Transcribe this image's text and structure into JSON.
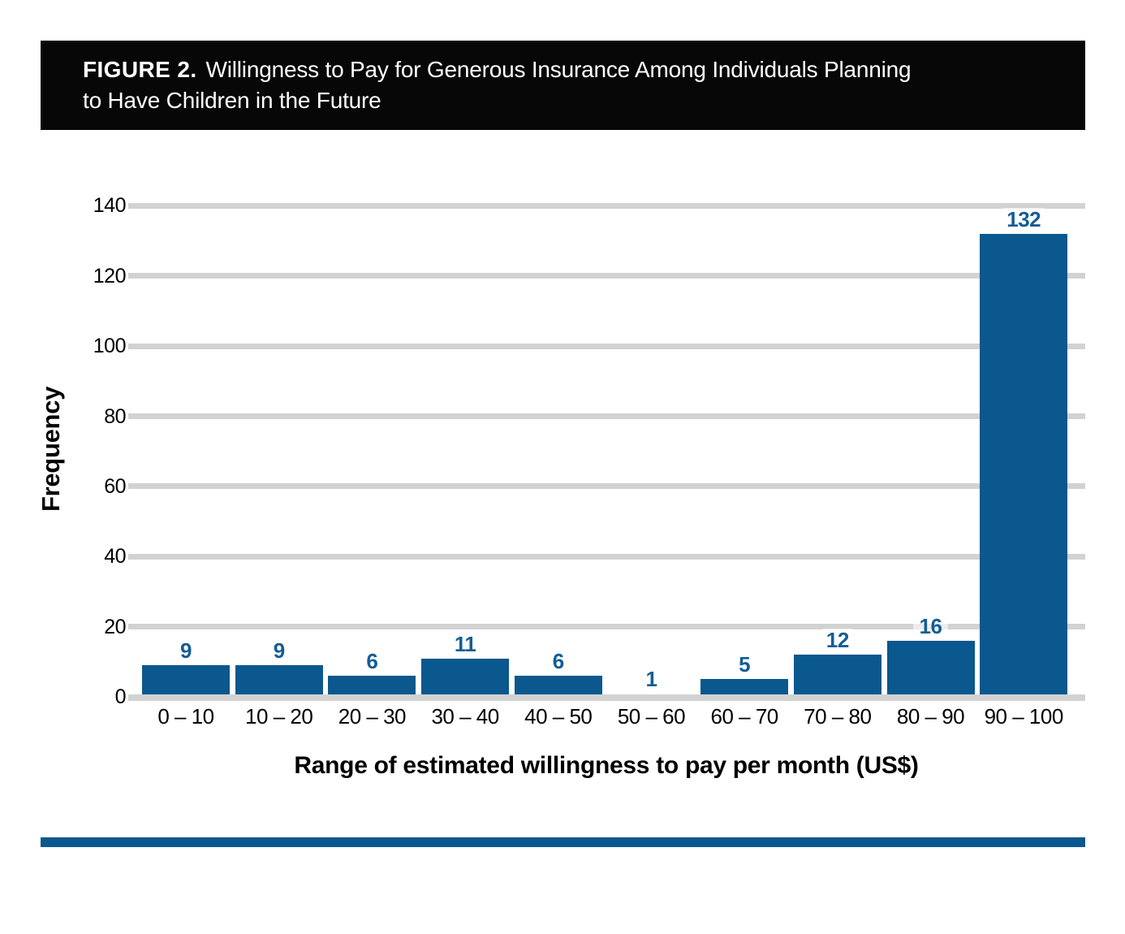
{
  "header": {
    "prefix": "FIGURE 2.",
    "line1": "Willingness to Pay for Generous Insurance Among Individuals Planning",
    "line2": "to Have Children in the Future"
  },
  "chart_data": {
    "type": "bar",
    "title": "FIGURE 2. Willingness to Pay for Generous Insurance Among Individuals Planning to Have Children in the Future",
    "categories": [
      "0 – 10",
      "10 – 20",
      "20 – 30",
      "30 – 40",
      "40 – 50",
      "50 – 60",
      "60 – 70",
      "70 – 80",
      "80 – 90",
      "90 – 100"
    ],
    "values": [
      9,
      9,
      6,
      11,
      6,
      1,
      5,
      12,
      16,
      132
    ],
    "value_labels": [
      "9",
      "9",
      "6",
      "11",
      "6",
      "1",
      "5",
      "12",
      "16",
      "132"
    ],
    "xlabel": "Range of estimated willingness to pay per month (US$)",
    "ylabel": "Frequency",
    "ylim": [
      0,
      140
    ],
    "yticks": [
      0,
      20,
      40,
      60,
      80,
      100,
      120,
      140
    ],
    "grid": true,
    "legend_position": "none",
    "value_labels_shown": true
  },
  "colors": {
    "bar": "#0a588e",
    "value_label": "#135d96",
    "gridline": "#d2d2d2",
    "axis_line": "#d2d2d2",
    "header_bg": "#070707",
    "header_text": "#ffffff",
    "bottom_rule": "#0a588e",
    "text": "#000000",
    "background": "#ffffff"
  }
}
